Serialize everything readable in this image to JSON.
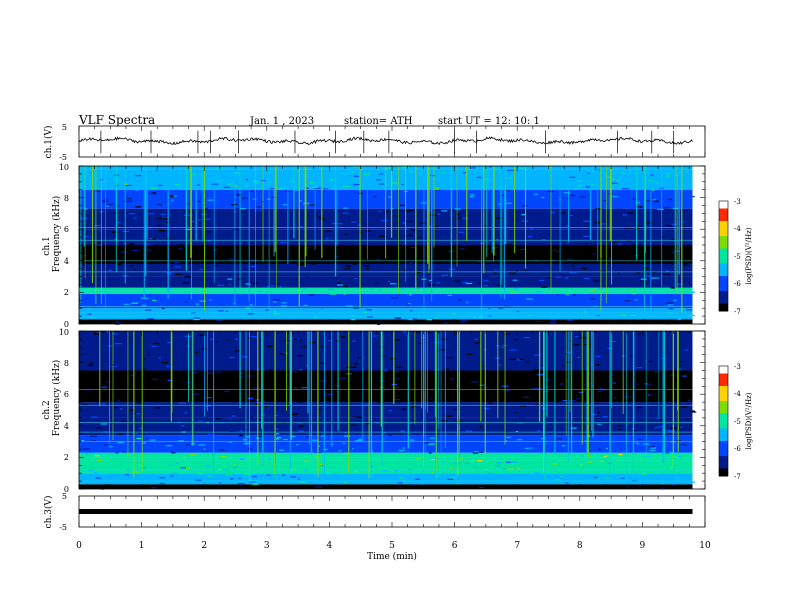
{
  "header": {
    "title": "VLF  Spectra",
    "date": "Jan.  1  , 2023",
    "station": "station= ATH",
    "start": "start  UT  =    12: 10: 1"
  },
  "chart_data": [
    {
      "id": "ch1v",
      "type": "line",
      "ylabel": "ch.1(V)",
      "ylim": [
        -5,
        5
      ],
      "yticks": [
        "5",
        "-5"
      ],
      "baseline": 0.2,
      "spikes": [
        0.35,
        1.15,
        1.9,
        2.1,
        2.55,
        3.45,
        4.1,
        4.55,
        4.95,
        6.0,
        6.35,
        7.45,
        8.6,
        9.15,
        9.5
      ],
      "color": "#000000"
    },
    {
      "id": "ch1",
      "type": "heatmap",
      "ylabel": "ch.1",
      "ylabel2": "Frequency  (kHz)",
      "ylim": [
        0,
        10
      ],
      "yticks": [
        "0",
        "2",
        "4",
        "6",
        "8",
        "10"
      ],
      "xlim": [
        0,
        10
      ],
      "colorbar": {
        "label": "log(PSD)(V²/Hz)",
        "ticks": [
          "-3",
          "-4",
          "-5",
          "-6",
          "-7"
        ],
        "range": [
          -7,
          -3
        ]
      },
      "bands": [
        {
          "f": [
            0.0,
            0.3
          ],
          "level": -7.0
        },
        {
          "f": [
            0.3,
            1.0
          ],
          "level": -5.6
        },
        {
          "f": [
            1.0,
            1.9
          ],
          "level": -5.9
        },
        {
          "f": [
            1.9,
            2.3
          ],
          "level": -5.2
        },
        {
          "f": [
            2.3,
            3.0
          ],
          "level": -6.3
        },
        {
          "f": [
            3.0,
            3.8
          ],
          "level": -6.6
        },
        {
          "f": [
            3.8,
            5.0
          ],
          "level": -6.95
        },
        {
          "f": [
            5.0,
            6.0
          ],
          "level": -6.6
        },
        {
          "f": [
            6.0,
            7.3
          ],
          "level": -6.4
        },
        {
          "f": [
            7.3,
            8.5
          ],
          "level": -6.2
        },
        {
          "f": [
            8.5,
            10.0
          ],
          "level": -5.4
        }
      ],
      "lines_khz": [
        0.5,
        0.7,
        1.1,
        2.1,
        3.3,
        4.0,
        5.3,
        6.1,
        9.8
      ]
    },
    {
      "id": "ch2",
      "type": "heatmap",
      "ylabel": "ch.2",
      "ylabel2": "Frequency  (kHz)",
      "ylim": [
        0,
        10
      ],
      "yticks": [
        "0",
        "2",
        "4",
        "6",
        "8",
        "10"
      ],
      "xlim": [
        0,
        10
      ],
      "colorbar": {
        "label": "log(PSD)(V²/Hz)",
        "ticks": [
          "-3",
          "-4",
          "-5",
          "-6",
          "-7"
        ],
        "range": [
          -7,
          -3
        ]
      },
      "bands": [
        {
          "f": [
            0.0,
            0.3
          ],
          "level": -7.0
        },
        {
          "f": [
            0.3,
            1.0
          ],
          "level": -5.5
        },
        {
          "f": [
            1.0,
            1.8
          ],
          "level": -5.1
        },
        {
          "f": [
            1.8,
            2.3
          ],
          "level": -4.8
        },
        {
          "f": [
            2.3,
            3.4
          ],
          "level": -5.8
        },
        {
          "f": [
            3.4,
            4.5
          ],
          "level": -6.3
        },
        {
          "f": [
            4.5,
            5.5
          ],
          "level": -6.6
        },
        {
          "f": [
            5.5,
            7.5
          ],
          "level": -6.8
        },
        {
          "f": [
            7.5,
            10.0
          ],
          "level": -6.6
        }
      ],
      "lines_khz": [
        0.5,
        1.2,
        2.0,
        3.0,
        3.6,
        4.2,
        5.3,
        6.3
      ]
    },
    {
      "id": "ch3v",
      "type": "line",
      "ylabel": "ch.3(V)",
      "ylim": [
        -5,
        5
      ],
      "yticks": [
        "5",
        "-5"
      ],
      "baseline": 0.0,
      "color": "#000000"
    }
  ],
  "xaxis": {
    "label": "Time  (min)",
    "ticks": [
      "0",
      "1",
      "2",
      "3",
      "4",
      "5",
      "6",
      "7",
      "8",
      "9",
      "10"
    ],
    "xlim": [
      0,
      10
    ],
    "data_end": 9.8
  },
  "colors": {
    "colormap": [
      "#000000",
      "#001c8c",
      "#0046ff",
      "#00b4ff",
      "#00e6a0",
      "#7ddc00",
      "#ffd200",
      "#ff2a00",
      "#ffffff"
    ]
  }
}
